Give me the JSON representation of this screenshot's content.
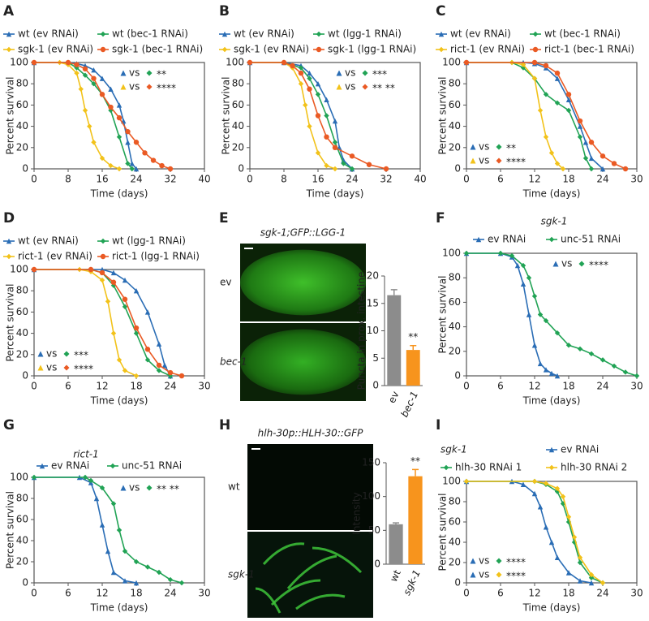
{
  "chart_data": [
    {
      "type": "line",
      "panel": "A",
      "xlabel": "Time (days)",
      "ylabel": "Percent survival",
      "xlim": [
        0,
        40
      ],
      "xticks": [
        0,
        8,
        16,
        24,
        32,
        40
      ],
      "ylim": [
        0,
        100
      ],
      "yticks": [
        0,
        20,
        40,
        60,
        80,
        100
      ],
      "series": [
        {
          "name": "wt (ev RNAi)",
          "color": "#2a6db5",
          "marker": "triangle",
          "x": [
            0,
            8,
            10,
            12,
            14,
            16,
            18,
            20,
            21,
            22,
            23,
            24
          ],
          "values": [
            100,
            100,
            99,
            97,
            93,
            85,
            75,
            60,
            45,
            25,
            5,
            0
          ]
        },
        {
          "name": "wt (bec-1 RNAi)",
          "color": "#21a355",
          "marker": "diamond",
          "x": [
            0,
            8,
            10,
            12,
            14,
            16,
            18,
            20,
            22,
            23
          ],
          "values": [
            100,
            100,
            95,
            88,
            80,
            70,
            55,
            30,
            5,
            0
          ]
        },
        {
          "name": "sgk-1 (ev RNAi)",
          "color": "#f2c21a",
          "marker": "diamond",
          "x": [
            0,
            6,
            8,
            10,
            11,
            12,
            13,
            14,
            16,
            18,
            20
          ],
          "values": [
            100,
            100,
            98,
            90,
            75,
            55,
            40,
            25,
            10,
            3,
            0
          ]
        },
        {
          "name": "sgk-1 (bec-1 RNAi)",
          "color": "#ea5a24",
          "marker": "circle",
          "x": [
            0,
            8,
            10,
            12,
            14,
            16,
            18,
            20,
            22,
            24,
            26,
            28,
            30,
            32
          ],
          "values": [
            100,
            100,
            98,
            94,
            85,
            70,
            58,
            48,
            35,
            25,
            15,
            8,
            3,
            0
          ]
        }
      ],
      "annotation_corner": "upper right",
      "annotations": [
        {
          "label": "vs",
          "stars": "**",
          "colors": [
            "#2a6db5",
            "#21a355"
          ]
        },
        {
          "label": "vs",
          "stars": "****",
          "colors": [
            "#f2c21a",
            "#ea5a24"
          ]
        }
      ]
    },
    {
      "type": "line",
      "panel": "B",
      "xlabel": "Time (days)",
      "ylabel": "Percent survival",
      "xlim": [
        0,
        40
      ],
      "xticks": [
        0,
        8,
        16,
        24,
        32,
        40
      ],
      "ylim": [
        0,
        100
      ],
      "yticks": [
        0,
        20,
        40,
        60,
        80,
        100
      ],
      "series": [
        {
          "name": "wt (ev RNAi)",
          "color": "#2a6db5",
          "marker": "triangle",
          "x": [
            0,
            8,
            12,
            14,
            16,
            18,
            20,
            21,
            22,
            24
          ],
          "values": [
            100,
            100,
            97,
            90,
            80,
            65,
            45,
            20,
            8,
            0
          ]
        },
        {
          "name": "wt (lgg-1 RNAi)",
          "color": "#21a355",
          "marker": "diamond",
          "x": [
            0,
            8,
            12,
            14,
            16,
            18,
            20,
            22,
            24
          ],
          "values": [
            100,
            100,
            95,
            85,
            70,
            50,
            25,
            5,
            0
          ]
        },
        {
          "name": "sgk-1 (ev RNAi)",
          "color": "#f2c21a",
          "marker": "diamond",
          "x": [
            0,
            8,
            10,
            12,
            13,
            14,
            16,
            18,
            20
          ],
          "values": [
            100,
            100,
            95,
            80,
            60,
            40,
            15,
            3,
            0
          ]
        },
        {
          "name": "sgk-1 (lgg-1 RNAi)",
          "color": "#ea5a24",
          "marker": "circle",
          "x": [
            0,
            8,
            10,
            12,
            14,
            16,
            18,
            20,
            24,
            28,
            32
          ],
          "values": [
            100,
            100,
            97,
            90,
            75,
            50,
            30,
            20,
            12,
            4,
            0
          ]
        }
      ],
      "annotation_corner": "upper right",
      "annotations": [
        {
          "label": "vs",
          "stars": "***",
          "colors": [
            "#2a6db5",
            "#21a355"
          ]
        },
        {
          "label": "vs",
          "stars": "** **",
          "colors": [
            "#f2c21a",
            "#ea5a24"
          ]
        }
      ]
    },
    {
      "type": "line",
      "panel": "C",
      "xlabel": "Time (days)",
      "ylabel": "Percent survival",
      "xlim": [
        0,
        30
      ],
      "xticks": [
        0,
        6,
        12,
        18,
        24,
        30
      ],
      "ylim": [
        0,
        100
      ],
      "yticks": [
        0,
        20,
        40,
        60,
        80,
        100
      ],
      "series": [
        {
          "name": "wt (ev RNAi)",
          "color": "#2a6db5",
          "marker": "triangle",
          "x": [
            0,
            10,
            12,
            14,
            16,
            18,
            20,
            21,
            22,
            24
          ],
          "values": [
            100,
            100,
            99,
            95,
            85,
            65,
            40,
            25,
            10,
            0
          ]
        },
        {
          "name": "wt (bec-1 RNAi)",
          "color": "#21a355",
          "marker": "diamond",
          "x": [
            0,
            8,
            10,
            12,
            14,
            16,
            18,
            20,
            21,
            22
          ],
          "values": [
            100,
            100,
            95,
            85,
            70,
            62,
            55,
            30,
            10,
            0
          ]
        },
        {
          "name": "rict-1 (ev RNAi)",
          "color": "#f2c21a",
          "marker": "diamond",
          "x": [
            0,
            8,
            10,
            12,
            13,
            14,
            15,
            16,
            17
          ],
          "values": [
            100,
            100,
            98,
            85,
            55,
            30,
            15,
            5,
            0
          ]
        },
        {
          "name": "rict-1 (bec-1 RNAi)",
          "color": "#ea5a24",
          "marker": "circle",
          "x": [
            0,
            12,
            14,
            16,
            18,
            20,
            22,
            24,
            26,
            28
          ],
          "values": [
            100,
            100,
            97,
            90,
            70,
            45,
            25,
            12,
            5,
            0
          ]
        }
      ],
      "annotation_corner": "lower left",
      "annotations": [
        {
          "label": "vs",
          "stars": "**",
          "colors": [
            "#2a6db5",
            "#21a355"
          ]
        },
        {
          "label": "vs",
          "stars": "****",
          "colors": [
            "#f2c21a",
            "#ea5a24"
          ]
        }
      ]
    },
    {
      "type": "line",
      "panel": "D",
      "xlabel": "Time (days)",
      "ylabel": "Percent survival",
      "xlim": [
        0,
        30
      ],
      "xticks": [
        0,
        6,
        12,
        18,
        24,
        30
      ],
      "ylim": [
        0,
        100
      ],
      "yticks": [
        0,
        20,
        40,
        60,
        80,
        100
      ],
      "series": [
        {
          "name": "wt (ev RNAi)",
          "color": "#2a6db5",
          "marker": "triangle",
          "x": [
            0,
            12,
            14,
            16,
            18,
            20,
            22,
            23,
            24
          ],
          "values": [
            100,
            100,
            97,
            90,
            80,
            60,
            30,
            10,
            0
          ]
        },
        {
          "name": "wt (lgg-1 RNAi)",
          "color": "#21a355",
          "marker": "diamond",
          "x": [
            0,
            10,
            12,
            14,
            16,
            18,
            20,
            22,
            24
          ],
          "values": [
            100,
            100,
            97,
            85,
            65,
            40,
            15,
            5,
            0
          ]
        },
        {
          "name": "rict-1 (ev RNAi)",
          "color": "#f2c21a",
          "marker": "diamond",
          "x": [
            0,
            8,
            10,
            12,
            13,
            14,
            15,
            16,
            18
          ],
          "values": [
            100,
            100,
            98,
            90,
            70,
            40,
            15,
            5,
            0
          ]
        },
        {
          "name": "rict-1 (lgg-1 RNAi)",
          "color": "#ea5a24",
          "marker": "circle",
          "x": [
            0,
            10,
            12,
            14,
            16,
            18,
            20,
            22,
            24,
            26
          ],
          "values": [
            100,
            100,
            97,
            88,
            72,
            45,
            25,
            10,
            3,
            0
          ]
        }
      ],
      "annotation_corner": "lower left",
      "annotations": [
        {
          "label": "vs",
          "stars": "***",
          "colors": [
            "#2a6db5",
            "#21a355"
          ]
        },
        {
          "label": "vs",
          "stars": "****",
          "colors": [
            "#f2c21a",
            "#ea5a24"
          ]
        }
      ]
    },
    {
      "type": "bar",
      "panel": "E",
      "image_title": "sgk-1;GFP::LGG-1",
      "image_labels": [
        "ev",
        "bec-1"
      ],
      "ylabel": "Puncta in prox. intestine",
      "categories": [
        "ev",
        "bec-1"
      ],
      "values": [
        16.5,
        6.5
      ],
      "errors": [
        1,
        0.8
      ],
      "colors": [
        "#8c8c8c",
        "#f7941d"
      ],
      "significance": [
        null,
        "**"
      ],
      "ylim": [
        0,
        20
      ],
      "yticks": [
        0,
        5,
        10,
        15,
        20
      ]
    },
    {
      "type": "line",
      "panel": "F",
      "title": "sgk-1",
      "xlabel": "Time (days)",
      "ylabel": "Percent survival",
      "xlim": [
        0,
        30
      ],
      "xticks": [
        0,
        6,
        12,
        18,
        24,
        30
      ],
      "ylim": [
        0,
        100
      ],
      "yticks": [
        0,
        20,
        40,
        60,
        80,
        100
      ],
      "series": [
        {
          "name": "ev RNAi",
          "color": "#2a6db5",
          "marker": "triangle",
          "x": [
            0,
            6,
            8,
            9,
            10,
            11,
            12,
            13,
            14,
            15,
            16
          ],
          "values": [
            100,
            100,
            97,
            90,
            75,
            50,
            25,
            10,
            5,
            2,
            0
          ]
        },
        {
          "name": "unc-51 RNAi",
          "color": "#21a355",
          "marker": "diamond",
          "x": [
            0,
            6,
            8,
            10,
            11,
            12,
            13,
            14,
            16,
            18,
            20,
            22,
            24,
            26,
            28,
            30
          ],
          "values": [
            100,
            100,
            98,
            90,
            80,
            65,
            50,
            45,
            35,
            25,
            22,
            18,
            13,
            8,
            3,
            0
          ]
        }
      ],
      "annotation_corner": "upper right",
      "annotations": [
        {
          "label": "vs",
          "stars": "****",
          "colors": [
            "#2a6db5",
            "#21a355"
          ]
        }
      ]
    },
    {
      "type": "line",
      "panel": "G",
      "title": "rict-1",
      "xlabel": "Time (days)",
      "ylabel": "Percent survival",
      "xlim": [
        0,
        30
      ],
      "xticks": [
        0,
        6,
        12,
        18,
        24,
        30
      ],
      "ylim": [
        0,
        100
      ],
      "yticks": [
        0,
        20,
        40,
        60,
        80,
        100
      ],
      "series": [
        {
          "name": "ev RNAi",
          "color": "#2a6db5",
          "marker": "triangle",
          "x": [
            0,
            8,
            10,
            11,
            12,
            13,
            14,
            16,
            18
          ],
          "values": [
            100,
            100,
            95,
            80,
            55,
            30,
            10,
            2,
            0
          ]
        },
        {
          "name": "unc-51 RNAi",
          "color": "#21a355",
          "marker": "diamond",
          "x": [
            0,
            9,
            10,
            12,
            14,
            15,
            16,
            18,
            20,
            22,
            24,
            26
          ],
          "values": [
            100,
            100,
            97,
            90,
            75,
            50,
            30,
            20,
            15,
            10,
            3,
            0
          ]
        }
      ],
      "annotation_corner": "upper right",
      "annotations": [
        {
          "label": "vs",
          "stars": "** **",
          "colors": [
            "#2a6db5",
            "#21a355"
          ]
        }
      ]
    },
    {
      "type": "bar",
      "panel": "H",
      "image_title": "hlh-30p::HLH-30::GFP",
      "image_labels": [
        "wt",
        "sgk-1"
      ],
      "ylabel": "Intensity",
      "categories": [
        "wt",
        "sgk-1"
      ],
      "values": [
        59,
        130
      ],
      "errors": [
        2,
        10
      ],
      "colors": [
        "#8c8c8c",
        "#f7941d"
      ],
      "significance": [
        null,
        "**"
      ],
      "ylim": [
        0,
        150
      ],
      "yticks": [
        0,
        50,
        100,
        150
      ]
    },
    {
      "type": "line",
      "panel": "I",
      "title": "sgk-1",
      "xlabel": "Time (days)",
      "ylabel": "Percent survival",
      "xlim": [
        0,
        30
      ],
      "xticks": [
        0,
        6,
        12,
        18,
        24,
        30
      ],
      "ylim": [
        0,
        100
      ],
      "yticks": [
        0,
        20,
        40,
        60,
        80,
        100
      ],
      "series": [
        {
          "name": "ev RNAi",
          "color": "#2a6db5",
          "marker": "triangle",
          "x": [
            0,
            8,
            10,
            12,
            13,
            14,
            15,
            16,
            18,
            20,
            22
          ],
          "values": [
            100,
            100,
            97,
            88,
            75,
            55,
            40,
            25,
            10,
            2,
            0
          ]
        },
        {
          "name": "hlh-30 RNAi 1",
          "color": "#21a355",
          "marker": "diamond",
          "x": [
            0,
            12,
            14,
            16,
            17,
            18,
            19,
            20,
            22,
            24
          ],
          "values": [
            100,
            100,
            97,
            90,
            78,
            60,
            40,
            20,
            5,
            0
          ]
        },
        {
          "name": "hlh-30 RNAi 2",
          "color": "#f2c21a",
          "marker": "diamond",
          "x": [
            0,
            12,
            14,
            16,
            17,
            18,
            19,
            20,
            22,
            24
          ],
          "values": [
            100,
            100,
            98,
            93,
            85,
            65,
            45,
            25,
            8,
            0
          ]
        }
      ],
      "annotation_corner": "lower left",
      "annotations": [
        {
          "label": "vs",
          "stars": "****",
          "colors": [
            "#2a6db5",
            "#21a355"
          ]
        },
        {
          "label": "vs",
          "stars": "****",
          "colors": [
            "#2a6db5",
            "#f2c21a"
          ]
        }
      ]
    }
  ]
}
